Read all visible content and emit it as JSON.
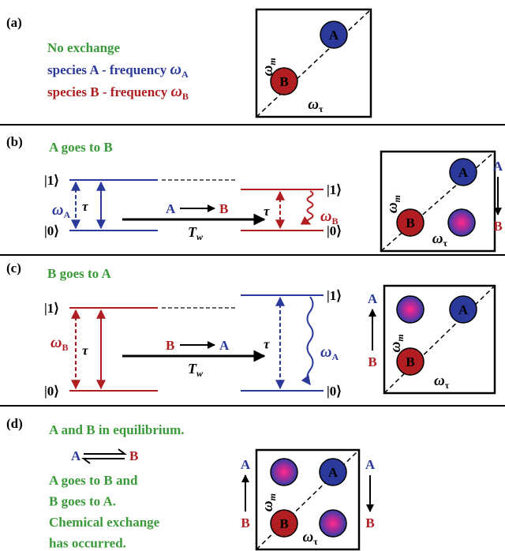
{
  "panel_a": {
    "label": "(a)",
    "title": "No exchange",
    "line_a": {
      "text": "species A - frequency ",
      "base": "ω",
      "sub": "A"
    },
    "line_b": {
      "text": "species B - frequency ",
      "base": "ω",
      "sub": "B"
    },
    "plot": {
      "peak_a": "A",
      "peak_b": "B",
      "y_axis": {
        "base": "ω",
        "sub": "m"
      },
      "x_axis": {
        "base": "ω",
        "sub": "τ"
      }
    }
  },
  "panel_b": {
    "label": "(b)",
    "title": "A goes to B",
    "initial": {
      "upper": "|1⟩",
      "lower": "|0⟩",
      "freq": {
        "base": "ω",
        "sub": "A"
      },
      "tau": "τ"
    },
    "transfer": {
      "from": "A",
      "to": "B",
      "time": {
        "base": "T",
        "sub": "w"
      }
    },
    "final": {
      "upper": "|1⟩",
      "lower": "|0⟩",
      "freq": {
        "base": "ω",
        "sub": "B"
      },
      "tau": "τ"
    },
    "plot": {
      "peak_a": "A",
      "peak_b": "B",
      "y_axis": {
        "base": "ω",
        "sub": "m"
      },
      "x_axis": {
        "base": "ω",
        "sub": "τ"
      }
    },
    "side": {
      "top": "A",
      "bottom": "B"
    }
  },
  "panel_c": {
    "label": "(c)",
    "title": "B goes to A",
    "initial": {
      "upper": "|1⟩",
      "lower": "|0⟩",
      "freq": {
        "base": "ω",
        "sub": "B"
      },
      "tau": "τ"
    },
    "transfer": {
      "from": "B",
      "to": "A",
      "time": {
        "base": "T",
        "sub": "w"
      }
    },
    "final": {
      "upper": "|1⟩",
      "lower": "|0⟩",
      "freq": {
        "base": "ω",
        "sub": "A"
      },
      "tau": "τ"
    },
    "plot": {
      "peak_a": "A",
      "peak_b": "B",
      "y_axis": {
        "base": "ω",
        "sub": "m"
      },
      "x_axis": {
        "base": "ω",
        "sub": "τ"
      }
    },
    "side": {
      "top": "A",
      "bottom": "B"
    }
  },
  "panel_d": {
    "label": "(d)",
    "title": "A and B in equilibrium.",
    "equilibrium": {
      "left": "A",
      "right": "B"
    },
    "lines": [
      "A goes to B and",
      "B goes to A.",
      "Chemical exchange",
      "has occurred."
    ],
    "plot": {
      "peak_a": "A",
      "peak_b": "B",
      "y_axis": {
        "base": "ω",
        "sub": "m"
      },
      "x_axis": {
        "base": "ω",
        "sub": "τ"
      }
    },
    "side_left": {
      "top": "A",
      "bottom": "B"
    },
    "side_right": {
      "top": "A",
      "bottom": "B"
    }
  }
}
